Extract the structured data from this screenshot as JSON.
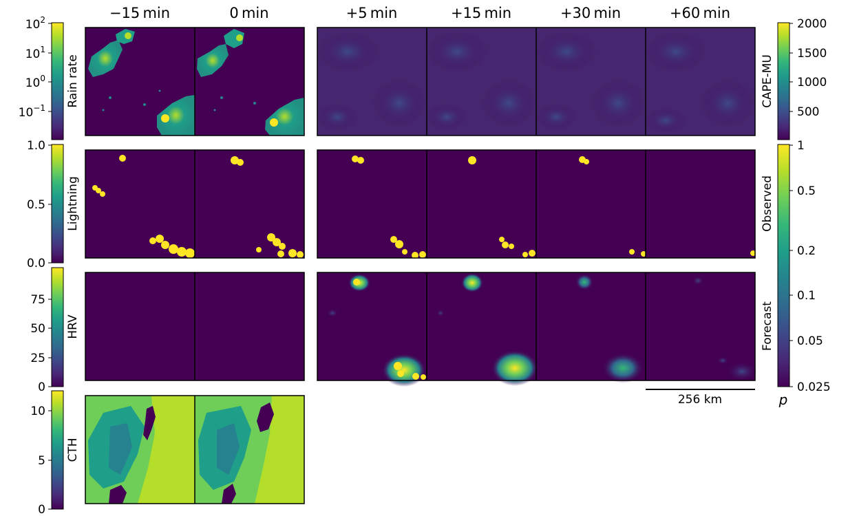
{
  "colors": {
    "viridis": [
      "#440154",
      "#482878",
      "#3e4989",
      "#31688e",
      "#26828e",
      "#1f9e89",
      "#35b779",
      "#6ece58",
      "#b5de2b",
      "#fde725"
    ],
    "background": "#440154",
    "lightning": "#fde725",
    "cth_high": "#b5de2b",
    "frame": "#000000"
  },
  "time_labels": [
    "−15 min",
    "0 min",
    "+5 min",
    "+15 min",
    "+30 min",
    "+60 min"
  ],
  "row_labels": [
    "Rain rate",
    "Lightning",
    "HRV",
    "CTH"
  ],
  "left_colorbars": [
    {
      "label": "Rain rate",
      "scale": "log",
      "ticks": [
        {
          "base": "10",
          "exp": "2"
        },
        {
          "base": "10",
          "exp": "1"
        },
        {
          "base": "10",
          "exp": "0"
        },
        {
          "base": "10",
          "exp": "−1"
        }
      ]
    },
    {
      "label": "Lightning",
      "scale": "linear",
      "range": [
        0.0,
        1.0
      ],
      "ticks": [
        "1.0",
        "0.5",
        "0.0"
      ]
    },
    {
      "label": "HRV",
      "scale": "linear",
      "range": [
        0,
        95
      ],
      "ticks": [
        "75",
        "50",
        "25",
        "0"
      ]
    },
    {
      "label": "CTH",
      "scale": "linear",
      "range": [
        0,
        12
      ],
      "ticks": [
        "10",
        "5",
        "0"
      ]
    }
  ],
  "right_colorbars": {
    "cape": {
      "label": "CAPE-MU",
      "range": [
        0,
        2000
      ],
      "ticks": [
        "2000",
        "1500",
        "1000",
        "500"
      ]
    },
    "probability": {
      "upper_label": "Observed",
      "lower_label": "Forecast",
      "scale": "log",
      "range": [
        0.025,
        1
      ],
      "ticks": [
        "1",
        "0.5",
        "0.2",
        "0.1",
        "0.05",
        "0.025"
      ],
      "symbol": "p"
    }
  },
  "scale_bar": {
    "label": "256 km"
  },
  "chart_data": {
    "type": "heatmap",
    "title": "",
    "panels_per_row": {
      "Rain rate": [
        "−15 min",
        "0 min"
      ],
      "CAPE-MU": [
        "+5 min",
        "+15 min",
        "+30 min",
        "+60 min"
      ],
      "Lightning": [
        "−15 min",
        "0 min",
        "+5 min",
        "+15 min",
        "+30 min",
        "+60 min"
      ],
      "HRV": [
        "−15 min",
        "0 min"
      ],
      "Forecast p": [
        "+5 min",
        "+15 min",
        "+30 min",
        "+60 min"
      ],
      "CTH": [
        "−15 min",
        "0 min"
      ]
    },
    "colormap": "viridis"
  }
}
